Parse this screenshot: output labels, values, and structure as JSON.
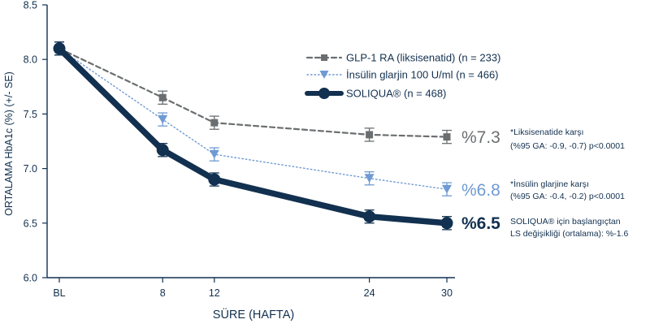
{
  "chart_data": {
    "type": "line",
    "ylabel": "ORTALAMA HbA1c (%) (+/- SE)",
    "xlabel": "SÜRE (HAFTA)",
    "x_categories": [
      "BL",
      "8",
      "12",
      "24",
      "30"
    ],
    "x_weeks": [
      0,
      8,
      12,
      24,
      30
    ],
    "ylim": [
      6.0,
      8.5
    ],
    "yticks": [
      "6.0",
      "6.5",
      "7.0",
      "7.5",
      "8.0",
      "8.5"
    ],
    "grid": false,
    "legend_position": "top-right",
    "series": [
      {
        "name": "GLP-1 RA (liksisenatid) (n = 233)",
        "values": [
          8.1,
          7.65,
          7.42,
          7.31,
          7.29
        ],
        "error": [
          0.06,
          0.06,
          0.06,
          0.06,
          0.06
        ],
        "color": "#6b6e70",
        "style": "dashed",
        "marker": "square",
        "end_label": "%7.3",
        "note_lines": [
          "*Liksisenatide karşı",
          "(%95 GA: -0.9, -0.7) p<0.0001"
        ]
      },
      {
        "name": "İnsülin glarjin 100 U/ml (n = 466)",
        "values": [
          8.1,
          7.45,
          7.13,
          6.91,
          6.81
        ],
        "error": [
          0.06,
          0.06,
          0.06,
          0.06,
          0.06
        ],
        "color": "#6f9ad3",
        "style": "dotted",
        "marker": "triangle-down",
        "end_label": "%6.8",
        "note_lines": [
          "*İnsülin glarjine karşı",
          "(%95 GA: -0.4, -0.2) p<0.0001"
        ]
      },
      {
        "name": "SOLIQUA® (n = 468)",
        "values": [
          8.1,
          7.17,
          6.9,
          6.56,
          6.5
        ],
        "error": [
          0.06,
          0.06,
          0.06,
          0.06,
          0.06
        ],
        "color": "#12304f",
        "style": "solid",
        "marker": "circle",
        "end_label": "%6.5",
        "note_lines": [
          "SOLIQUA® için başlangıçtan",
          "LS değişikliği (ortalama): %-1.6"
        ]
      }
    ]
  }
}
